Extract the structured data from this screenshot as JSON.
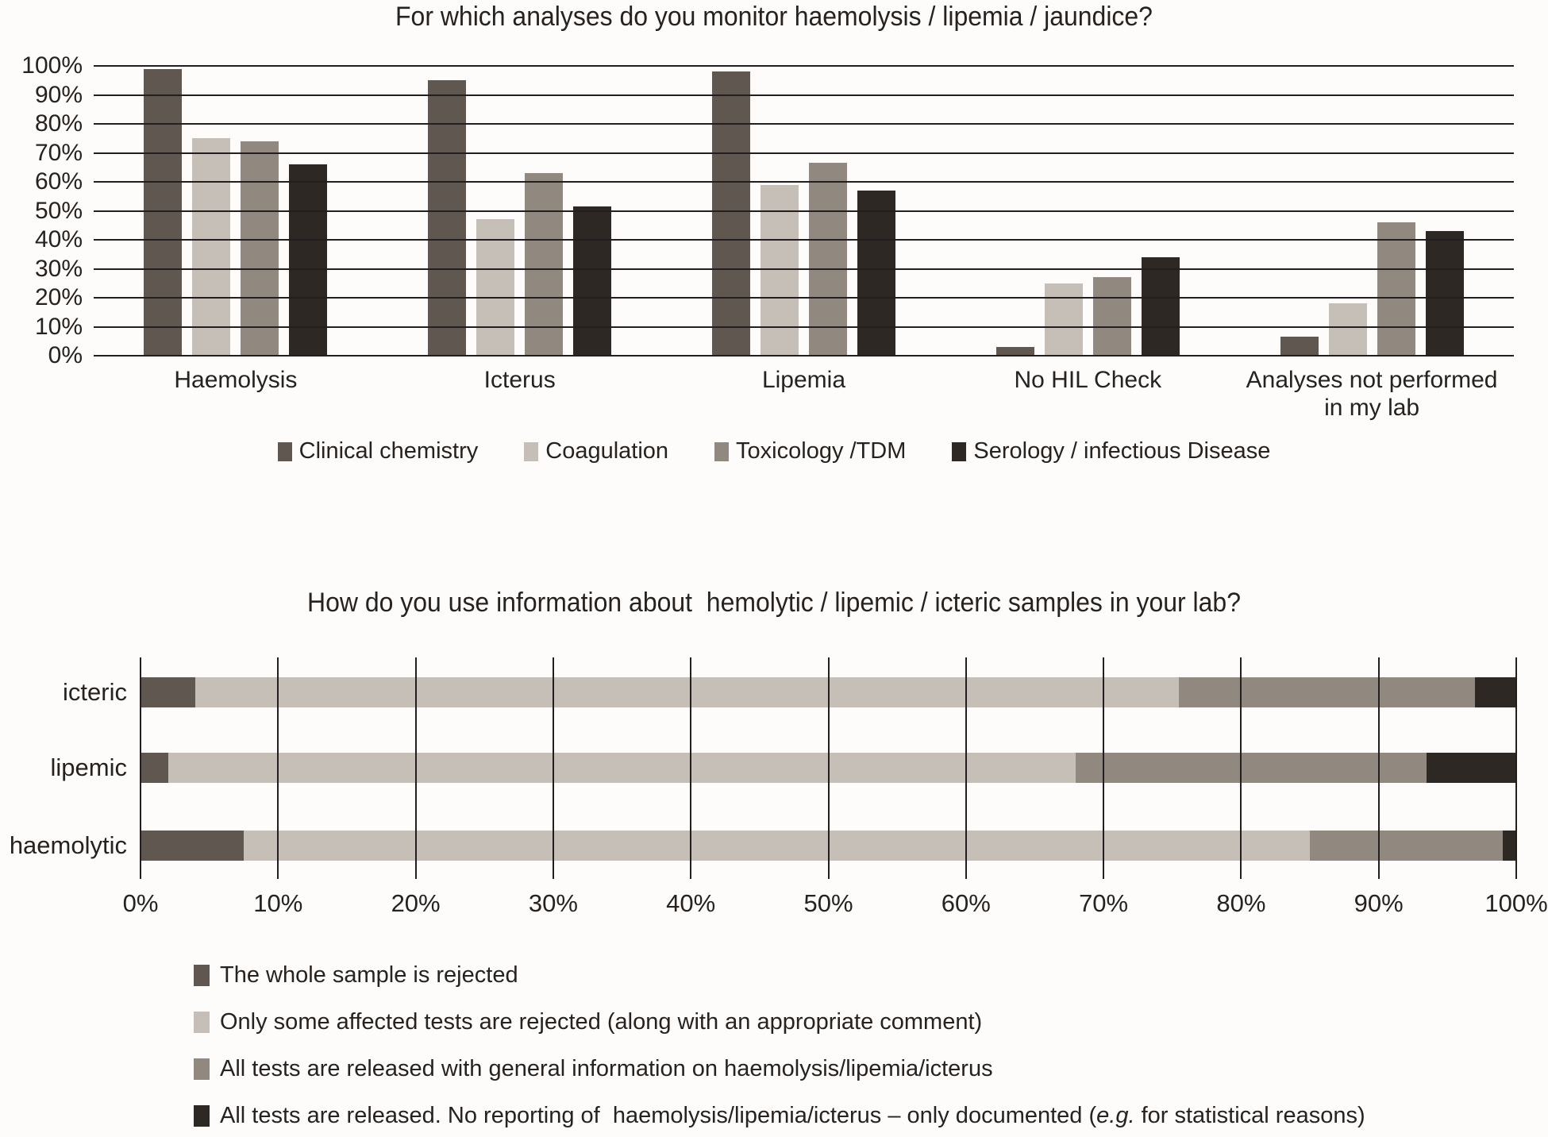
{
  "palette": {
    "dark": "#5f5750",
    "light": "#c6bfb8",
    "medium": "#91887f",
    "black": "#2d2823",
    "grid": "#231f20",
    "background": "#fdfcfa",
    "text": "#262220"
  },
  "chart_data": [
    {
      "type": "bar",
      "orientation": "vertical",
      "grouped": true,
      "title": "For which analyses do you monitor haemolysis / lipemia / jaundice?",
      "categories": [
        "Haemolysis",
        "Icterus",
        "Lipemia",
        "No HIL Check",
        "Analyses not performed\nin my lab"
      ],
      "series": [
        {
          "name": "Clinical chemistry",
          "color_key": "dark",
          "values": [
            99,
            95,
            98,
            3,
            6.5
          ]
        },
        {
          "name": "Coagulation",
          "color_key": "light",
          "values": [
            75,
            47,
            59,
            25,
            18
          ]
        },
        {
          "name": "Toxicology /TDM",
          "color_key": "medium",
          "values": [
            74,
            63,
            66.5,
            27,
            46
          ]
        },
        {
          "name": "Serology / infectious Disease",
          "color_key": "black",
          "values": [
            66,
            51.5,
            57,
            34,
            43
          ]
        }
      ],
      "ylabel": "",
      "xlabel": "",
      "ylim": [
        0,
        100
      ],
      "ytick_step": 10,
      "ytick_labels": [
        "0%",
        "10%",
        "20%",
        "30%",
        "40%",
        "50%",
        "60%",
        "70%",
        "80%",
        "90%",
        "100%"
      ],
      "grid": true,
      "gridlines_on_top": true,
      "legend_position": "bottom-center"
    },
    {
      "type": "bar",
      "orientation": "horizontal",
      "stacked": true,
      "title": "How do you use information about  hemolytic / lipemic / icteric samples in your lab?",
      "categories": [
        "icteric",
        "lipemic",
        "haemolytic"
      ],
      "series": [
        {
          "name": "The whole sample is rejected",
          "color_key": "dark",
          "values": [
            4,
            2,
            7.5
          ]
        },
        {
          "name": "Only some affected tests are rejected (along with an appropriate comment)",
          "color_key": "light",
          "values": [
            71.5,
            66,
            77.5
          ]
        },
        {
          "name": "All tests are released with general information on haemolysis/lipemia/icterus",
          "color_key": "medium",
          "values": [
            21.5,
            25.5,
            14
          ]
        },
        {
          "name": "All tests are released. No reporting of  haemolysis/lipemia/icterus – only documented (e.g. for statistical reasons)",
          "color_key": "black",
          "values": [
            3,
            6.5,
            1
          ],
          "italic_part": "e.g."
        }
      ],
      "xlim": [
        0,
        100
      ],
      "xtick_step": 10,
      "xtick_labels": [
        "0%",
        "10%",
        "20%",
        "30%",
        "40%",
        "50%",
        "60%",
        "70%",
        "80%",
        "90%",
        "100%"
      ],
      "grid": true,
      "gridlines_on_top": true,
      "legend_position": "bottom-left"
    }
  ]
}
